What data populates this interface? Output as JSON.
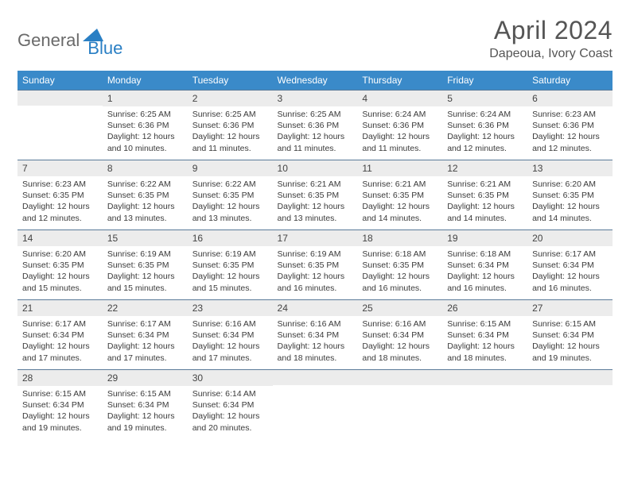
{
  "logo": {
    "part1": "General",
    "part2": "Blue",
    "triangle_color": "#2a7fc4"
  },
  "title": "April 2024",
  "location": "Dapeoua, Ivory Coast",
  "header_bg": "#3a8ac9",
  "daynum_bg": "#ececec",
  "border_color": "#5a7a99",
  "weekdays": [
    "Sunday",
    "Monday",
    "Tuesday",
    "Wednesday",
    "Thursday",
    "Friday",
    "Saturday"
  ],
  "weeks": [
    [
      {
        "n": "",
        "sunrise": "",
        "sunset": "",
        "daylight": ""
      },
      {
        "n": "1",
        "sunrise": "6:25 AM",
        "sunset": "6:36 PM",
        "daylight": "12 hours and 10 minutes."
      },
      {
        "n": "2",
        "sunrise": "6:25 AM",
        "sunset": "6:36 PM",
        "daylight": "12 hours and 11 minutes."
      },
      {
        "n": "3",
        "sunrise": "6:25 AM",
        "sunset": "6:36 PM",
        "daylight": "12 hours and 11 minutes."
      },
      {
        "n": "4",
        "sunrise": "6:24 AM",
        "sunset": "6:36 PM",
        "daylight": "12 hours and 11 minutes."
      },
      {
        "n": "5",
        "sunrise": "6:24 AM",
        "sunset": "6:36 PM",
        "daylight": "12 hours and 12 minutes."
      },
      {
        "n": "6",
        "sunrise": "6:23 AM",
        "sunset": "6:36 PM",
        "daylight": "12 hours and 12 minutes."
      }
    ],
    [
      {
        "n": "7",
        "sunrise": "6:23 AM",
        "sunset": "6:35 PM",
        "daylight": "12 hours and 12 minutes."
      },
      {
        "n": "8",
        "sunrise": "6:22 AM",
        "sunset": "6:35 PM",
        "daylight": "12 hours and 13 minutes."
      },
      {
        "n": "9",
        "sunrise": "6:22 AM",
        "sunset": "6:35 PM",
        "daylight": "12 hours and 13 minutes."
      },
      {
        "n": "10",
        "sunrise": "6:21 AM",
        "sunset": "6:35 PM",
        "daylight": "12 hours and 13 minutes."
      },
      {
        "n": "11",
        "sunrise": "6:21 AM",
        "sunset": "6:35 PM",
        "daylight": "12 hours and 14 minutes."
      },
      {
        "n": "12",
        "sunrise": "6:21 AM",
        "sunset": "6:35 PM",
        "daylight": "12 hours and 14 minutes."
      },
      {
        "n": "13",
        "sunrise": "6:20 AM",
        "sunset": "6:35 PM",
        "daylight": "12 hours and 14 minutes."
      }
    ],
    [
      {
        "n": "14",
        "sunrise": "6:20 AM",
        "sunset": "6:35 PM",
        "daylight": "12 hours and 15 minutes."
      },
      {
        "n": "15",
        "sunrise": "6:19 AM",
        "sunset": "6:35 PM",
        "daylight": "12 hours and 15 minutes."
      },
      {
        "n": "16",
        "sunrise": "6:19 AM",
        "sunset": "6:35 PM",
        "daylight": "12 hours and 15 minutes."
      },
      {
        "n": "17",
        "sunrise": "6:19 AM",
        "sunset": "6:35 PM",
        "daylight": "12 hours and 16 minutes."
      },
      {
        "n": "18",
        "sunrise": "6:18 AM",
        "sunset": "6:35 PM",
        "daylight": "12 hours and 16 minutes."
      },
      {
        "n": "19",
        "sunrise": "6:18 AM",
        "sunset": "6:34 PM",
        "daylight": "12 hours and 16 minutes."
      },
      {
        "n": "20",
        "sunrise": "6:17 AM",
        "sunset": "6:34 PM",
        "daylight": "12 hours and 16 minutes."
      }
    ],
    [
      {
        "n": "21",
        "sunrise": "6:17 AM",
        "sunset": "6:34 PM",
        "daylight": "12 hours and 17 minutes."
      },
      {
        "n": "22",
        "sunrise": "6:17 AM",
        "sunset": "6:34 PM",
        "daylight": "12 hours and 17 minutes."
      },
      {
        "n": "23",
        "sunrise": "6:16 AM",
        "sunset": "6:34 PM",
        "daylight": "12 hours and 17 minutes."
      },
      {
        "n": "24",
        "sunrise": "6:16 AM",
        "sunset": "6:34 PM",
        "daylight": "12 hours and 18 minutes."
      },
      {
        "n": "25",
        "sunrise": "6:16 AM",
        "sunset": "6:34 PM",
        "daylight": "12 hours and 18 minutes."
      },
      {
        "n": "26",
        "sunrise": "6:15 AM",
        "sunset": "6:34 PM",
        "daylight": "12 hours and 18 minutes."
      },
      {
        "n": "27",
        "sunrise": "6:15 AM",
        "sunset": "6:34 PM",
        "daylight": "12 hours and 19 minutes."
      }
    ],
    [
      {
        "n": "28",
        "sunrise": "6:15 AM",
        "sunset": "6:34 PM",
        "daylight": "12 hours and 19 minutes."
      },
      {
        "n": "29",
        "sunrise": "6:15 AM",
        "sunset": "6:34 PM",
        "daylight": "12 hours and 19 minutes."
      },
      {
        "n": "30",
        "sunrise": "6:14 AM",
        "sunset": "6:34 PM",
        "daylight": "12 hours and 20 minutes."
      },
      {
        "n": "",
        "sunrise": "",
        "sunset": "",
        "daylight": ""
      },
      {
        "n": "",
        "sunrise": "",
        "sunset": "",
        "daylight": ""
      },
      {
        "n": "",
        "sunrise": "",
        "sunset": "",
        "daylight": ""
      },
      {
        "n": "",
        "sunrise": "",
        "sunset": "",
        "daylight": ""
      }
    ]
  ],
  "labels": {
    "sunrise": "Sunrise:",
    "sunset": "Sunset:",
    "daylight": "Daylight:"
  }
}
